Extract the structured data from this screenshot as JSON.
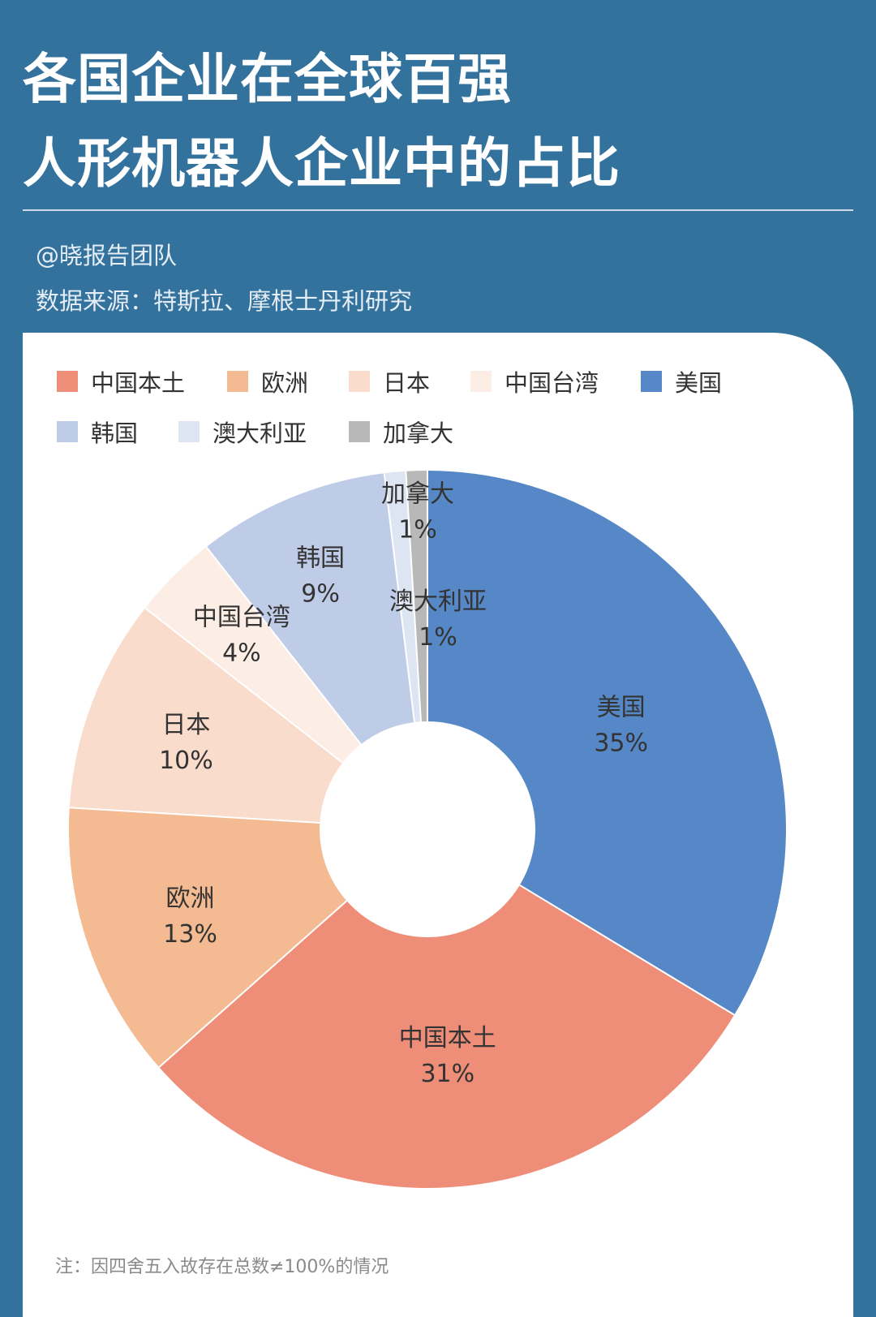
{
  "header": {
    "title_line1": "各国企业在全球百强",
    "title_line2": "人形机器人企业中的占比",
    "author": "@晓报告团队",
    "source": "数据来源：特斯拉、摩根士丹利研究"
  },
  "note": "注：因四舍五入故存在总数≠100%的情况",
  "chart_data": {
    "type": "pie",
    "title": "各国企业在全球百强人形机器人企业中的占比",
    "donut": true,
    "legend_position": "top",
    "slices": [
      {
        "name": "美国",
        "value": 35,
        "label": "35%",
        "color": "#5688c7"
      },
      {
        "name": "中国本土",
        "value": 31,
        "label": "31%",
        "color": "#ef8e78"
      },
      {
        "name": "欧洲",
        "value": 13,
        "label": "13%",
        "color": "#f4bb93"
      },
      {
        "name": "日本",
        "value": 10,
        "label": "10%",
        "color": "#f9dccb"
      },
      {
        "name": "中国台湾",
        "value": 4,
        "label": "4%",
        "color": "#fdeee5"
      },
      {
        "name": "韩国",
        "value": 9,
        "label": "9%",
        "color": "#bfcce7"
      },
      {
        "name": "澳大利亚",
        "value": 1,
        "label": "1%",
        "color": "#dde4f2"
      },
      {
        "name": "加拿大",
        "value": 1,
        "label": "1%",
        "color": "#b8b8b8"
      }
    ],
    "legend": [
      {
        "name": "中国本土",
        "color": "#ef8e78"
      },
      {
        "name": "欧洲",
        "color": "#f4bb93"
      },
      {
        "name": "日本",
        "color": "#f9dccb"
      },
      {
        "name": "中国台湾",
        "color": "#fdeee5"
      },
      {
        "name": "美国",
        "color": "#5688c7"
      },
      {
        "name": "韩国",
        "color": "#bfcce7"
      },
      {
        "name": "澳大利亚",
        "color": "#dde4f2"
      },
      {
        "name": "加拿大",
        "color": "#b8b8b8"
      }
    ]
  }
}
